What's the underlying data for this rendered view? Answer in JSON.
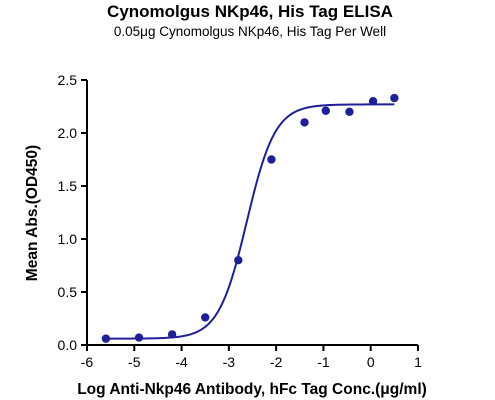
{
  "chart_data": {
    "type": "scatter",
    "title": "Cynomolgus NKp46, His Tag ELISA",
    "subtitle": "0.05μg Cynomolgus NKp46, His Tag Per Well",
    "xlabel": "Log Anti-Nkp46 Antibody, hFc Tag Conc.(μg/ml)",
    "ylabel": "Mean Abs.(OD450)",
    "xlim": [
      -6,
      1
    ],
    "ylim": [
      0,
      2.5
    ],
    "x_ticks": [
      -6,
      -5,
      -4,
      -3,
      -2,
      -1,
      0,
      1
    ],
    "x_tick_labels": [
      "-6",
      "-5",
      "-4",
      "-3",
      "-2",
      "-1",
      "0",
      "1"
    ],
    "y_ticks": [
      0,
      0.5,
      1.0,
      1.5,
      2.0,
      2.5
    ],
    "y_tick_labels": [
      "0.0",
      "0.5",
      "1.0",
      "1.5",
      "2.0",
      "2.5"
    ],
    "grid": false,
    "color": "#1f1f9a",
    "series": [
      {
        "points": [
          {
            "x": -5.6,
            "y": 0.06
          },
          {
            "x": -4.9,
            "y": 0.07
          },
          {
            "x": -4.2,
            "y": 0.1
          },
          {
            "x": -3.5,
            "y": 0.26
          },
          {
            "x": -2.8,
            "y": 0.8
          },
          {
            "x": -2.1,
            "y": 1.75
          },
          {
            "x": -1.4,
            "y": 2.1
          },
          {
            "x": -0.95,
            "y": 2.21
          },
          {
            "x": -0.45,
            "y": 2.2
          },
          {
            "x": 0.05,
            "y": 2.3
          },
          {
            "x": 0.5,
            "y": 2.33
          }
        ],
        "fit": {
          "model": "4PL",
          "bottom": 0.06,
          "top": 2.27,
          "logEC50": -2.62,
          "hill": 1.45,
          "x_range": [
            -5.6,
            0.5
          ]
        }
      }
    ]
  }
}
